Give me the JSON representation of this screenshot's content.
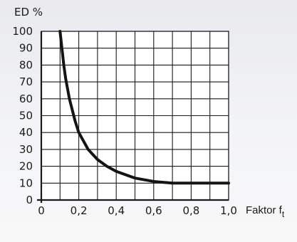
{
  "chart_data": {
    "type": "line",
    "ylabel": "ED  %",
    "xlabel": "Faktor f",
    "xlabel_subscript": "t",
    "xlim": [
      0,
      1.0
    ],
    "ylim": [
      0,
      100
    ],
    "x_ticks": [
      "0",
      "0,2",
      "0,4",
      "0,6",
      "0,8",
      "1,0"
    ],
    "y_ticks": [
      "0",
      "10",
      "20",
      "30",
      "40",
      "50",
      "60",
      "70",
      "80",
      "90",
      "100"
    ],
    "grid": true,
    "series": [
      {
        "x": [
          0.1,
          0.11,
          0.12,
          0.13,
          0.15,
          0.18,
          0.2,
          0.25,
          0.3,
          0.35,
          0.4,
          0.45,
          0.5,
          0.55,
          0.6,
          0.65,
          0.7,
          0.8,
          0.9,
          1.0
        ],
        "y": [
          100,
          90,
          80,
          72,
          60,
          47,
          40,
          30,
          24,
          20,
          17,
          15,
          13,
          12,
          11,
          10.5,
          10,
          10,
          10,
          10
        ]
      }
    ]
  }
}
